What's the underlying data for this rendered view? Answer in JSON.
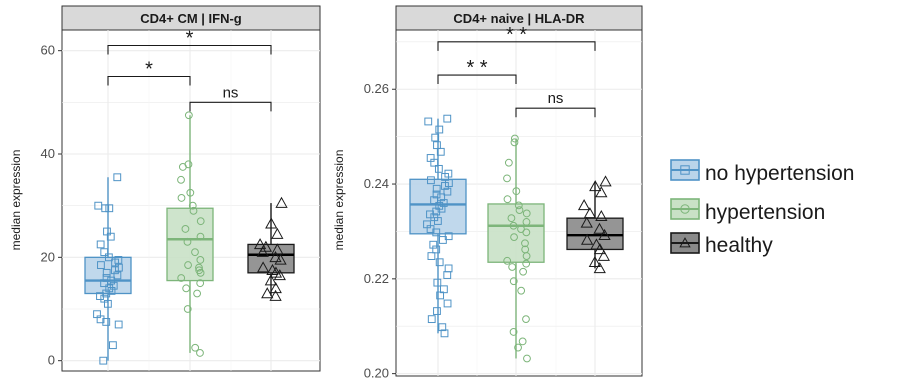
{
  "colors": {
    "no_hypertension": "#4f93c6",
    "hypertension": "#7db57a",
    "healthy": "#1a1a1a"
  },
  "legend": {
    "items": [
      {
        "label": "no hypertension",
        "shape": "square",
        "color": "#4f93c6",
        "fill": "#b9d4ea"
      },
      {
        "label": "hypertension",
        "shape": "circle",
        "color": "#7db57a",
        "fill": "#c9e1c6"
      },
      {
        "label": "healthy",
        "shape": "triangle",
        "color": "#1a1a1a",
        "fill": "#8a8a8a"
      }
    ]
  },
  "chart_data": [
    {
      "type": "box",
      "title": "CD4+ CM | IFN-g",
      "ylabel": "median expression",
      "ylim": [
        -2,
        64
      ],
      "yticks": [
        "0",
        "20",
        "40",
        "60"
      ],
      "grid": true,
      "groups": [
        {
          "name": "no hypertension",
          "min": 0,
          "q1": 13,
          "median": 15.5,
          "q3": 20,
          "max": 35.5,
          "points": [
            35.5,
            30,
            29.5,
            29.5,
            25,
            24,
            22.5,
            21,
            20,
            19.5,
            19,
            18.5,
            18,
            17.5,
            17,
            16.5,
            16,
            15.5,
            15,
            14.5,
            14,
            13.5,
            13,
            12.5,
            12,
            11,
            9,
            8,
            7.5,
            7,
            3,
            0
          ]
        },
        {
          "name": "hypertension",
          "min": 1.5,
          "q1": 15.5,
          "median": 23.5,
          "q3": 29.5,
          "max": 47.5,
          "points": [
            47.5,
            38,
            37.5,
            35,
            32.5,
            31.5,
            30,
            29,
            27,
            25.5,
            24,
            23,
            21,
            19.5,
            18.5,
            18,
            17.5,
            17,
            16,
            15,
            14,
            13,
            10,
            2.5,
            1.5
          ]
        },
        {
          "name": "healthy",
          "min": 12.5,
          "q1": 17,
          "median": 20.5,
          "q3": 22.5,
          "max": 30.5,
          "points": [
            30.5,
            26.5,
            24.5,
            22.5,
            22,
            21.5,
            21,
            20,
            19.5,
            18,
            17.5,
            17,
            16.5,
            15.5,
            14,
            13,
            12.5
          ]
        }
      ],
      "comparisons": [
        {
          "from": 0,
          "to": 2,
          "label": "*",
          "y": 61
        },
        {
          "from": 0,
          "to": 1,
          "label": "*",
          "y": 55
        },
        {
          "from": 1,
          "to": 2,
          "label": "ns",
          "y": 50
        }
      ]
    },
    {
      "type": "box",
      "title": "CD4+ naive | HLA-DR",
      "ylabel": "median expression",
      "ylim": [
        0.1995,
        0.2725
      ],
      "yticks": [
        "0.20",
        "0.22",
        "0.24",
        "0.26"
      ],
      "grid": true,
      "groups": [
        {
          "name": "no hypertension",
          "min": 0.2085,
          "q1": 0.2295,
          "median": 0.2357,
          "q3": 0.241,
          "max": 0.2538,
          "points": [
            0.2538,
            0.2532,
            0.2515,
            0.2498,
            0.2482,
            0.2468,
            0.2455,
            0.2445,
            0.2432,
            0.2422,
            0.2415,
            0.2408,
            0.2402,
            0.2396,
            0.239,
            0.2384,
            0.2378,
            0.2372,
            0.2366,
            0.236,
            0.2354,
            0.2348,
            0.2342,
            0.2336,
            0.233,
            0.2322,
            0.2315,
            0.2305,
            0.2298,
            0.229,
            0.2282,
            0.2272,
            0.2262,
            0.2248,
            0.2235,
            0.2222,
            0.2208,
            0.2192,
            0.2178,
            0.2165,
            0.2148,
            0.2132,
            0.2115,
            0.2098,
            0.2085
          ]
        },
        {
          "name": "hypertension",
          "min": 0.2032,
          "q1": 0.2235,
          "median": 0.2312,
          "q3": 0.2358,
          "max": 0.2496,
          "points": [
            0.2496,
            0.2488,
            0.2445,
            0.2412,
            0.2385,
            0.2368,
            0.2355,
            0.2345,
            0.2338,
            0.2328,
            0.232,
            0.2312,
            0.2305,
            0.2298,
            0.2288,
            0.2275,
            0.2262,
            0.2248,
            0.2238,
            0.2232,
            0.2225,
            0.2215,
            0.2195,
            0.2175,
            0.2115,
            0.2088,
            0.2068,
            0.2055,
            0.2032
          ]
        },
        {
          "name": "healthy",
          "min": 0.2222,
          "q1": 0.2262,
          "median": 0.2292,
          "q3": 0.2328,
          "max": 0.2405,
          "points": [
            0.2405,
            0.2395,
            0.2382,
            0.2355,
            0.2338,
            0.2332,
            0.2318,
            0.2305,
            0.2292,
            0.2282,
            0.2272,
            0.2262,
            0.2248,
            0.2235,
            0.2222
          ]
        }
      ],
      "comparisons": [
        {
          "from": 0,
          "to": 2,
          "label": "* *",
          "y": 0.27
        },
        {
          "from": 0,
          "to": 1,
          "label": "* *",
          "y": 0.263
        },
        {
          "from": 1,
          "to": 2,
          "label": "ns",
          "y": 0.256
        }
      ]
    }
  ]
}
